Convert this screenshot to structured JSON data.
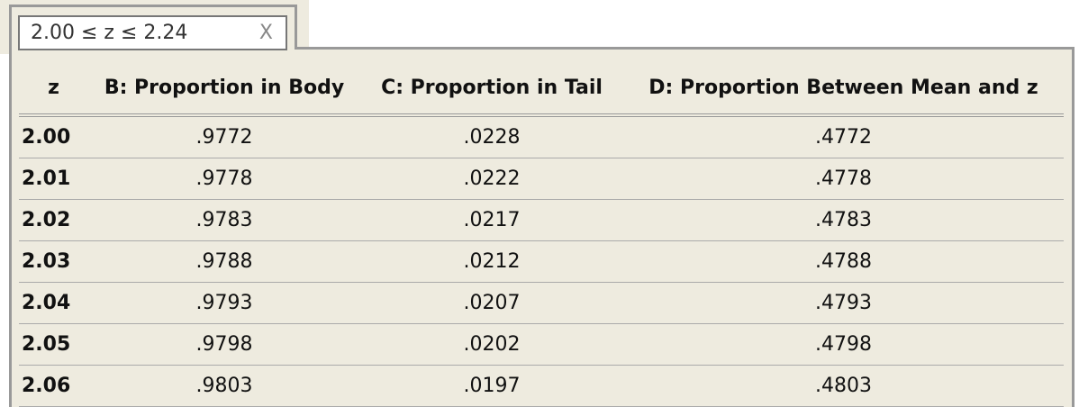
{
  "filter": {
    "text": "2.00 ≤ z ≤ 2.24",
    "clear": "X"
  },
  "table": {
    "columns": [
      "z",
      "B: Proportion in Body",
      "C: Proportion in Tail",
      "D: Proportion Between Mean and z"
    ],
    "rows": [
      [
        "2.00",
        ".9772",
        ".0228",
        ".4772"
      ],
      [
        "2.01",
        ".9778",
        ".0222",
        ".4778"
      ],
      [
        "2.02",
        ".9783",
        ".0217",
        ".4783"
      ],
      [
        "2.03",
        ".9788",
        ".0212",
        ".4788"
      ],
      [
        "2.04",
        ".9793",
        ".0207",
        ".4793"
      ],
      [
        "2.05",
        ".9798",
        ".0202",
        ".4798"
      ],
      [
        "2.06",
        ".9803",
        ".0197",
        ".4803"
      ]
    ]
  }
}
